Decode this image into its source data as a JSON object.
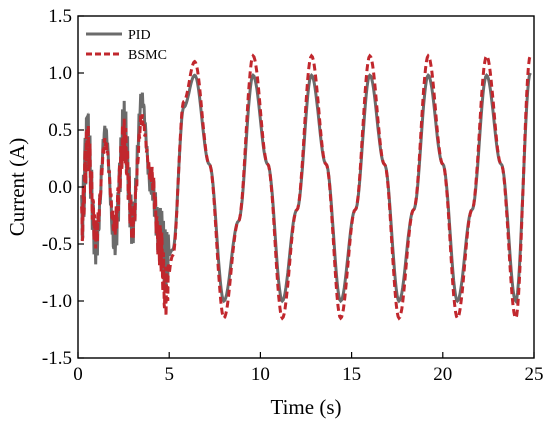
{
  "chart_data": {
    "type": "line",
    "xlabel": "Time (s)",
    "ylabel": "Current (A)",
    "xlim": [
      0,
      25
    ],
    "ylim": [
      -1.5,
      1.5
    ],
    "x_ticks": [
      "0",
      "5",
      "10",
      "15",
      "20",
      "25"
    ],
    "y_ticks": [
      "-1.5",
      "-1.0",
      "-0.5",
      "0.0",
      "0.5",
      "1.0",
      "1.5"
    ],
    "grid": false,
    "legend_position": "top-left",
    "series": [
      {
        "name": "PID",
        "color": "#6b6b6b",
        "style": "solid",
        "description_points": {
          "x": [
            0.2,
            0.5,
            1.0,
            1.5,
            2.0,
            2.5,
            3.0,
            3.5,
            4.0,
            4.5,
            4.8,
            5.2,
            5.8,
            6.4,
            7.2,
            8.0,
            8.8,
            9.6,
            10.4,
            11.2,
            12.0,
            12.8,
            13.6,
            14.4,
            15.2,
            16.0,
            16.8,
            17.6,
            18.4,
            19.2,
            20.0,
            20.8,
            21.6,
            22.4,
            23.2,
            24.0,
            24.8
          ],
          "y": [
            -0.3,
            0.4,
            -0.5,
            0.5,
            -0.5,
            0.5,
            -0.3,
            0.78,
            0.0,
            -0.4,
            -0.65,
            -0.55,
            0.7,
            0.98,
            0.2,
            -1.0,
            -0.3,
            0.98,
            0.2,
            -1.0,
            -0.2,
            0.98,
            0.2,
            -1.0,
            -0.2,
            0.98,
            0.2,
            -1.0,
            -0.2,
            0.98,
            0.2,
            -1.0,
            -0.2,
            0.98,
            0.2,
            -1.0,
            1.0
          ]
        }
      },
      {
        "name": "BSMC",
        "color": "#c1272d",
        "style": "dashed",
        "description_points": {
          "x": [
            0.2,
            0.5,
            1.0,
            1.5,
            2.0,
            2.5,
            3.0,
            3.5,
            4.0,
            4.5,
            4.8,
            5.2,
            5.8,
            6.4,
            7.2,
            8.0,
            8.8,
            9.6,
            10.4,
            11.2,
            12.0,
            12.8,
            13.6,
            14.4,
            15.2,
            16.0,
            16.8,
            17.6,
            18.4,
            19.2,
            20.0,
            20.8,
            21.6,
            22.4,
            23.2,
            24.0,
            24.8
          ],
          "y": [
            -0.35,
            0.35,
            -0.4,
            0.4,
            -0.35,
            0.4,
            -0.3,
            0.6,
            0.1,
            -0.5,
            -0.92,
            -0.6,
            0.75,
            1.1,
            0.2,
            -1.15,
            -0.3,
            1.15,
            0.2,
            -1.15,
            -0.2,
            1.15,
            0.2,
            -1.15,
            -0.2,
            1.15,
            0.2,
            -1.15,
            -0.2,
            1.15,
            0.2,
            -1.15,
            -0.2,
            1.15,
            0.2,
            -1.15,
            1.15
          ]
        }
      }
    ]
  }
}
